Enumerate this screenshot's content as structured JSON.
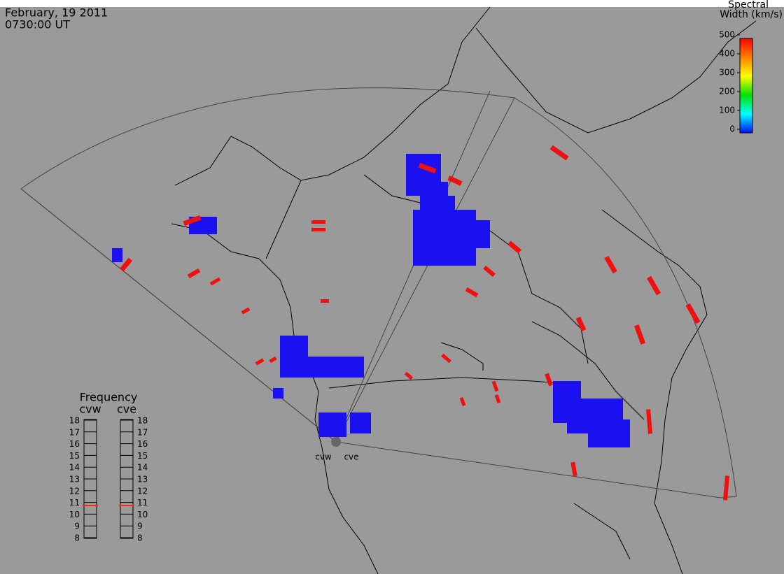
{
  "header": {
    "date": "February, 19 2011",
    "time": "0730:00 UT"
  },
  "colorbar": {
    "title": [
      "Spectral",
      "Width (km/s)"
    ],
    "range": [
      0,
      500
    ],
    "ticks": [
      0,
      100,
      200,
      300,
      400,
      500
    ]
  },
  "frequency": {
    "title": "Frequency",
    "range": [
      8,
      18
    ],
    "ticks": [
      8,
      9,
      10,
      11,
      12,
      13,
      14,
      15,
      16,
      17,
      18
    ],
    "radars": [
      {
        "name": "cvw",
        "value": 10.8
      },
      {
        "name": "cve",
        "value": 10.8
      }
    ]
  },
  "radar_labels": [
    "cvw",
    "cve"
  ]
}
